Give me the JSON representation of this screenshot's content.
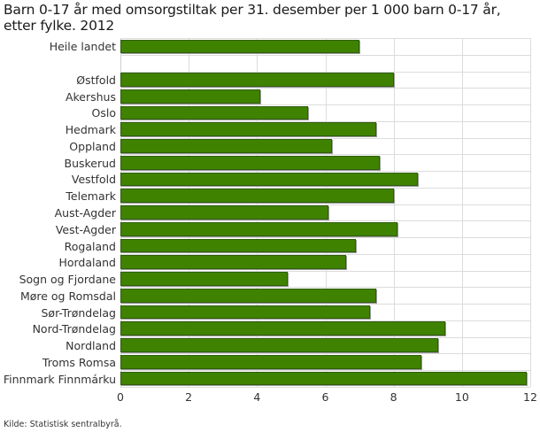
{
  "title": "Barn 0-17 år med omsorgstiltak per 31. desember per 1 000 barn 0-17 år, etter fylke. 2012",
  "source": "Kilde: Statistisk sentralbyrå.",
  "colors": {
    "bar": "#3f8200",
    "bar_border": "#2f5e0a",
    "grid": "#dcdcdc"
  },
  "chart_data": {
    "type": "bar",
    "orientation": "horizontal",
    "title": "Barn 0-17 år med omsorgstiltak per 31. desember per 1 000 barn 0-17 år, etter fylke. 2012",
    "xlabel": "",
    "ylabel": "",
    "xlim": [
      0,
      12
    ],
    "xticks": [
      "0",
      "2",
      "4",
      "6",
      "8",
      "10",
      "12"
    ],
    "grid": true,
    "legend": "none",
    "categories": [
      "Heile landet",
      "",
      "Østfold",
      "Akershus",
      "Oslo",
      "Hedmark",
      "Oppland",
      "Buskerud",
      "Vestfold",
      "Telemark",
      "Aust-Agder",
      "Vest-Agder",
      "Rogaland",
      "Hordaland",
      "Sogn og Fjordane",
      "Møre og Romsdal",
      "Sør-Trøndelag",
      "Nord-Trøndelag",
      "Nordland",
      "Troms Romsa",
      "Finnmark Finnmárku"
    ],
    "values": [
      7.0,
      null,
      8.0,
      4.1,
      5.5,
      7.5,
      6.2,
      7.6,
      8.7,
      8.0,
      6.1,
      8.1,
      6.9,
      6.6,
      4.9,
      7.5,
      7.3,
      9.5,
      9.3,
      8.8,
      11.9
    ]
  }
}
